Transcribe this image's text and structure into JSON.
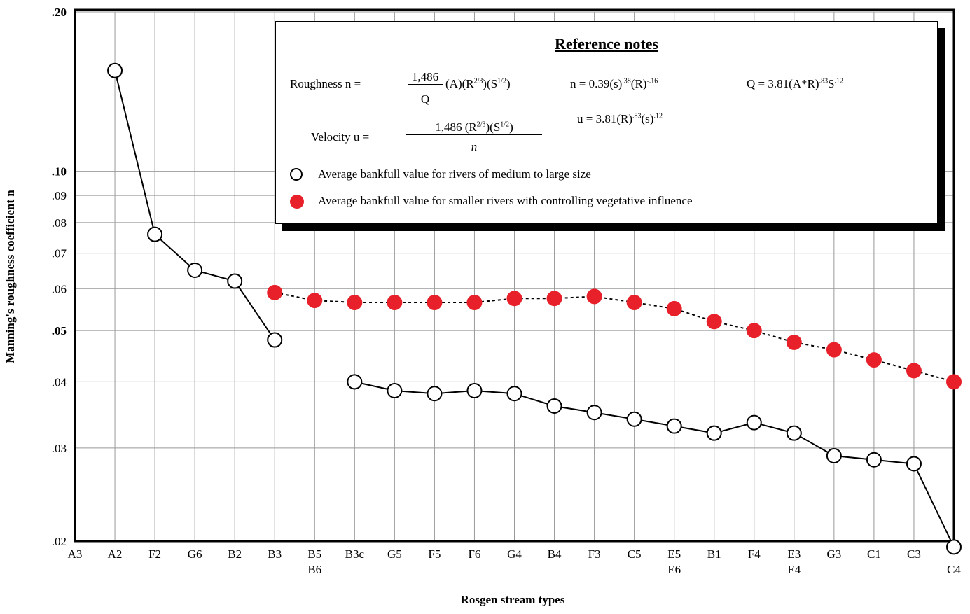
{
  "chart_data": {
    "type": "line",
    "x_label": "Rosgen stream types",
    "y_label": "Manning's roughness coefficient n",
    "log_y": true,
    "grid": true,
    "categories": [
      "A3",
      "A2",
      "F2",
      "G6",
      "B2",
      "B3",
      [
        "B5",
        "B6"
      ],
      "B3c",
      "G5",
      "F5",
      "F6",
      "G4",
      "B4",
      "F3",
      "C5",
      [
        "E5",
        "E6"
      ],
      "B1",
      "F4",
      [
        "E3",
        "E4"
      ],
      "G3",
      "C1",
      "C3",
      "C4"
    ],
    "ylim": [
      0.02,
      0.2
    ],
    "yticks": [
      {
        "value": 0.02,
        "label": ".02"
      },
      {
        "value": 0.03,
        "label": ".03"
      },
      {
        "value": 0.04,
        "label": ".04"
      },
      {
        "value": 0.05,
        "label": ".05"
      },
      {
        "value": 0.06,
        "label": ".06"
      },
      {
        "value": 0.07,
        "label": ".07"
      },
      {
        "value": 0.08,
        "label": ".08"
      },
      {
        "value": 0.09,
        "label": ".09"
      },
      {
        "value": 0.1,
        "label": ".10"
      },
      {
        "value": 0.2,
        "label": ".20"
      }
    ],
    "series": [
      {
        "name": "Average bankfull value for rivers of medium to large size",
        "color": "#ffffff",
        "line": "solid",
        "values": [
          null,
          0.155,
          0.076,
          0.065,
          0.062,
          0.048,
          null,
          0.04,
          0.0385,
          0.038,
          0.0385,
          0.038,
          0.036,
          0.035,
          0.034,
          0.033,
          0.032,
          0.0335,
          0.032,
          0.029,
          0.0285,
          0.028,
          0.0195
        ]
      },
      {
        "name": "Average bankfull value for smaller rivers with controlling vegetative influence",
        "color": "#e8202a",
        "line": "dotted",
        "values": [
          null,
          null,
          null,
          null,
          null,
          0.059,
          0.057,
          0.0565,
          0.0565,
          0.0565,
          0.0565,
          0.0575,
          0.0575,
          0.058,
          0.0565,
          0.055,
          0.052,
          0.05,
          0.0475,
          0.046,
          0.044,
          0.042,
          0.04
        ]
      }
    ],
    "notes": {
      "title": "Reference notes",
      "roughness_label": "Roughness n =",
      "roughness_num": "1,486",
      "roughness_den": "Q",
      "roughness_rest": [
        "(A)(R",
        "2/3",
        ")(S",
        "1/2",
        ")"
      ],
      "n_formula": [
        "n = 0.39(s)",
        ".38",
        "(R)",
        "-.16"
      ],
      "q_formula": [
        "Q = 3.81(A*R)",
        ".83",
        "S",
        ".12"
      ],
      "u_formula": [
        "u = 3.81(R)",
        ".83",
        "(s)",
        ".12"
      ],
      "velocity_label": "Velocity u =",
      "velocity_num": [
        "1,486 (R",
        "2/3",
        ")(S",
        "1/2",
        ")"
      ],
      "velocity_den": "n"
    }
  }
}
